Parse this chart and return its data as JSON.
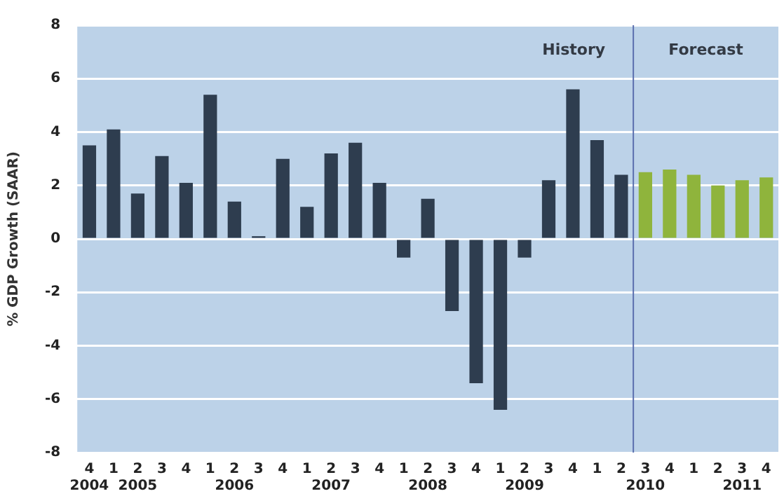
{
  "chart_data": {
    "type": "bar",
    "ylabel": "% GDP Growth (SAAR)",
    "categories": [
      "4\n2004",
      "1",
      "2\n2005",
      "3",
      "4",
      "1",
      "2\n2006",
      "3",
      "4",
      "1",
      "2\n2007",
      "3",
      "4",
      "1",
      "2\n2008",
      "3",
      "4",
      "1",
      "2\n2009",
      "3",
      "4",
      "1",
      "2",
      "3\n2010",
      "4",
      "1",
      "2",
      "3\n2011",
      "4"
    ],
    "values": [
      3.5,
      4.1,
      1.7,
      3.1,
      2.1,
      5.4,
      1.4,
      0.1,
      3.0,
      1.2,
      3.2,
      3.6,
      2.1,
      -0.7,
      1.5,
      -2.7,
      -5.4,
      -6.4,
      -0.7,
      2.2,
      5.6,
      3.7,
      2.4,
      2.5,
      2.6,
      2.4,
      2.0,
      2.2,
      2.3
    ],
    "colors": [
      "#2e3d4f",
      "#2e3d4f",
      "#2e3d4f",
      "#2e3d4f",
      "#2e3d4f",
      "#2e3d4f",
      "#2e3d4f",
      "#2e3d4f",
      "#2e3d4f",
      "#2e3d4f",
      "#2e3d4f",
      "#2e3d4f",
      "#2e3d4f",
      "#2e3d4f",
      "#2e3d4f",
      "#2e3d4f",
      "#2e3d4f",
      "#2e3d4f",
      "#2e3d4f",
      "#2e3d4f",
      "#2e3d4f",
      "#2e3d4f",
      "#2e3d4f",
      "#8fb43c",
      "#8fb43c",
      "#8fb43c",
      "#8fb43c",
      "#8fb43c",
      "#8fb43c"
    ],
    "ylim": [
      -8,
      8
    ],
    "yticks": [
      -8,
      -6,
      -4,
      -2,
      0,
      2,
      4,
      6,
      8
    ],
    "grid": "y",
    "ref_lines": [
      {
        "axis": "x",
        "value": "3\n2010",
        "color": "#5b6fae"
      }
    ],
    "annotations": [
      "History",
      "Forecast"
    ],
    "legend": false
  }
}
